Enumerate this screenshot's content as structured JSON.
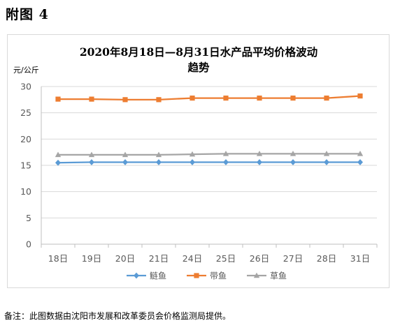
{
  "figure": {
    "label": "附图 4",
    "footnote": "备注：此图数据由沈阳市发展和改革委员会价格监测局提供。"
  },
  "chart_data": {
    "type": "line",
    "title_lines": [
      "2020年8月18日—8月31日水产品平均价格波动",
      "趋势"
    ],
    "ylabel": "元/公斤",
    "xlabel": "",
    "categories": [
      "18日",
      "19日",
      "20日",
      "21日",
      "24日",
      "25日",
      "26日",
      "27日",
      "28日",
      "31日"
    ],
    "ylim": [
      0,
      30
    ],
    "yticks": [
      0,
      5,
      10,
      15,
      20,
      25,
      30
    ],
    "grid": "horizontal",
    "legend_position": "bottom",
    "series": [
      {
        "name": "鲢鱼",
        "color": "#5b9bd5",
        "marker": "diamond",
        "values": [
          15.5,
          15.6,
          15.6,
          15.6,
          15.6,
          15.6,
          15.6,
          15.6,
          15.6,
          15.6
        ]
      },
      {
        "name": "带鱼",
        "color": "#ed7d31",
        "marker": "square",
        "values": [
          27.6,
          27.6,
          27.5,
          27.5,
          27.8,
          27.8,
          27.8,
          27.8,
          27.8,
          28.2
        ]
      },
      {
        "name": "草鱼",
        "color": "#a5a5a5",
        "marker": "triangle",
        "values": [
          17.0,
          17.0,
          17.0,
          17.0,
          17.1,
          17.2,
          17.2,
          17.2,
          17.2,
          17.2
        ]
      }
    ]
  }
}
